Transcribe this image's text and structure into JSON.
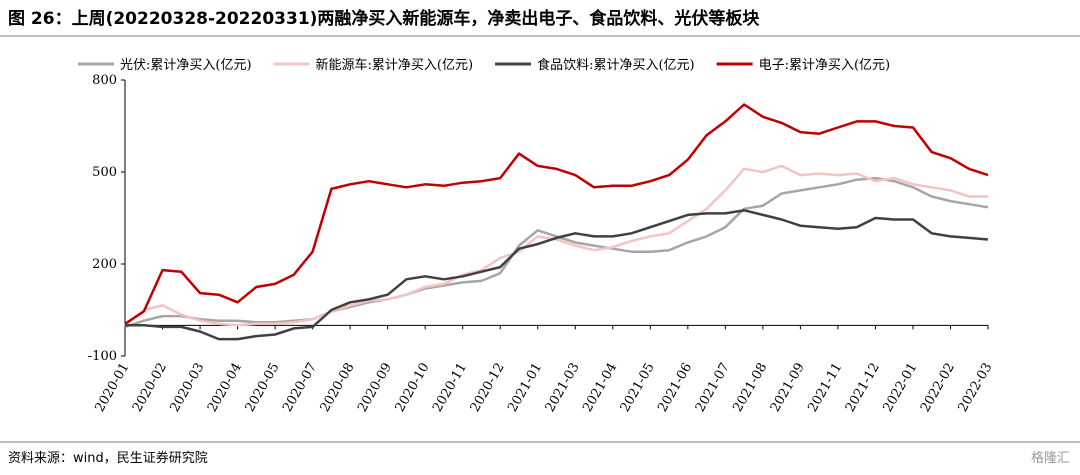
{
  "chart_data": {
    "type": "line",
    "title": "图 26：上周(20220328-20220331)两融净买入新能源车，净卖出电子、食品饮料、光伏等板块",
    "source": "资料来源：wind，民生证券研究院",
    "watermark": "格隆汇",
    "categories": [
      "2020-01",
      null,
      "2020-02",
      null,
      "2020-03",
      null,
      "2020-04",
      null,
      "2020-05",
      null,
      "2020-07",
      null,
      "2020-08",
      null,
      "2020-09",
      null,
      "2020-10",
      null,
      "2020-11",
      null,
      "2020-12",
      null,
      "2021-01",
      null,
      "2021-03",
      null,
      "2021-04",
      null,
      "2021-05",
      null,
      "2021-06",
      null,
      "2021-07",
      null,
      "2021-08",
      null,
      "2021-09",
      null,
      "2021-11",
      null,
      "2021-12",
      null,
      "2022-01",
      null,
      "2022-02",
      null,
      "2022-03"
    ],
    "ylim": [
      -100,
      800
    ],
    "yticks": [
      -100,
      200,
      500,
      800
    ],
    "legend": "top",
    "series": [
      {
        "name": "光伏:累计净买入(亿元)",
        "color": "#a6a6a6",
        "values": [
          -5,
          15,
          30,
          30,
          20,
          15,
          15,
          10,
          10,
          15,
          20,
          45,
          60,
          75,
          85,
          100,
          120,
          130,
          140,
          145,
          170,
          260,
          310,
          290,
          270,
          260,
          250,
          240,
          240,
          245,
          270,
          290,
          320,
          380,
          390,
          430,
          440,
          450,
          460,
          475,
          480,
          470,
          450,
          420,
          405,
          395,
          385
        ]
      },
      {
        "name": "新能源车:累计净买入(亿元)",
        "color": "#f2c4c4",
        "values": [
          0,
          50,
          65,
          35,
          15,
          5,
          0,
          5,
          5,
          10,
          20,
          45,
          65,
          80,
          85,
          100,
          125,
          135,
          165,
          180,
          220,
          240,
          290,
          280,
          260,
          245,
          255,
          275,
          290,
          300,
          340,
          380,
          440,
          510,
          500,
          520,
          490,
          495,
          490,
          495,
          470,
          480,
          460,
          450,
          440,
          420,
          420
        ]
      },
      {
        "name": "食品饮料:累计净买入(亿元)",
        "color": "#404040",
        "values": [
          0,
          0,
          -5,
          -5,
          -20,
          -45,
          -45,
          -35,
          -30,
          -10,
          -5,
          50,
          75,
          85,
          100,
          150,
          160,
          150,
          160,
          175,
          190,
          250,
          265,
          285,
          300,
          290,
          290,
          300,
          320,
          340,
          360,
          365,
          365,
          375,
          360,
          345,
          325,
          320,
          315,
          320,
          350,
          345,
          345,
          300,
          290,
          285,
          280
        ]
      },
      {
        "name": "电子:累计净买入(亿元)",
        "color": "#c00000",
        "values": [
          5,
          45,
          180,
          175,
          105,
          100,
          75,
          125,
          135,
          165,
          240,
          445,
          460,
          470,
          460,
          450,
          460,
          455,
          465,
          470,
          480,
          560,
          520,
          510,
          490,
          450,
          455,
          455,
          470,
          490,
          540,
          620,
          665,
          720,
          680,
          660,
          630,
          625,
          645,
          665,
          665,
          650,
          645,
          565,
          545,
          510,
          490
        ]
      }
    ]
  }
}
